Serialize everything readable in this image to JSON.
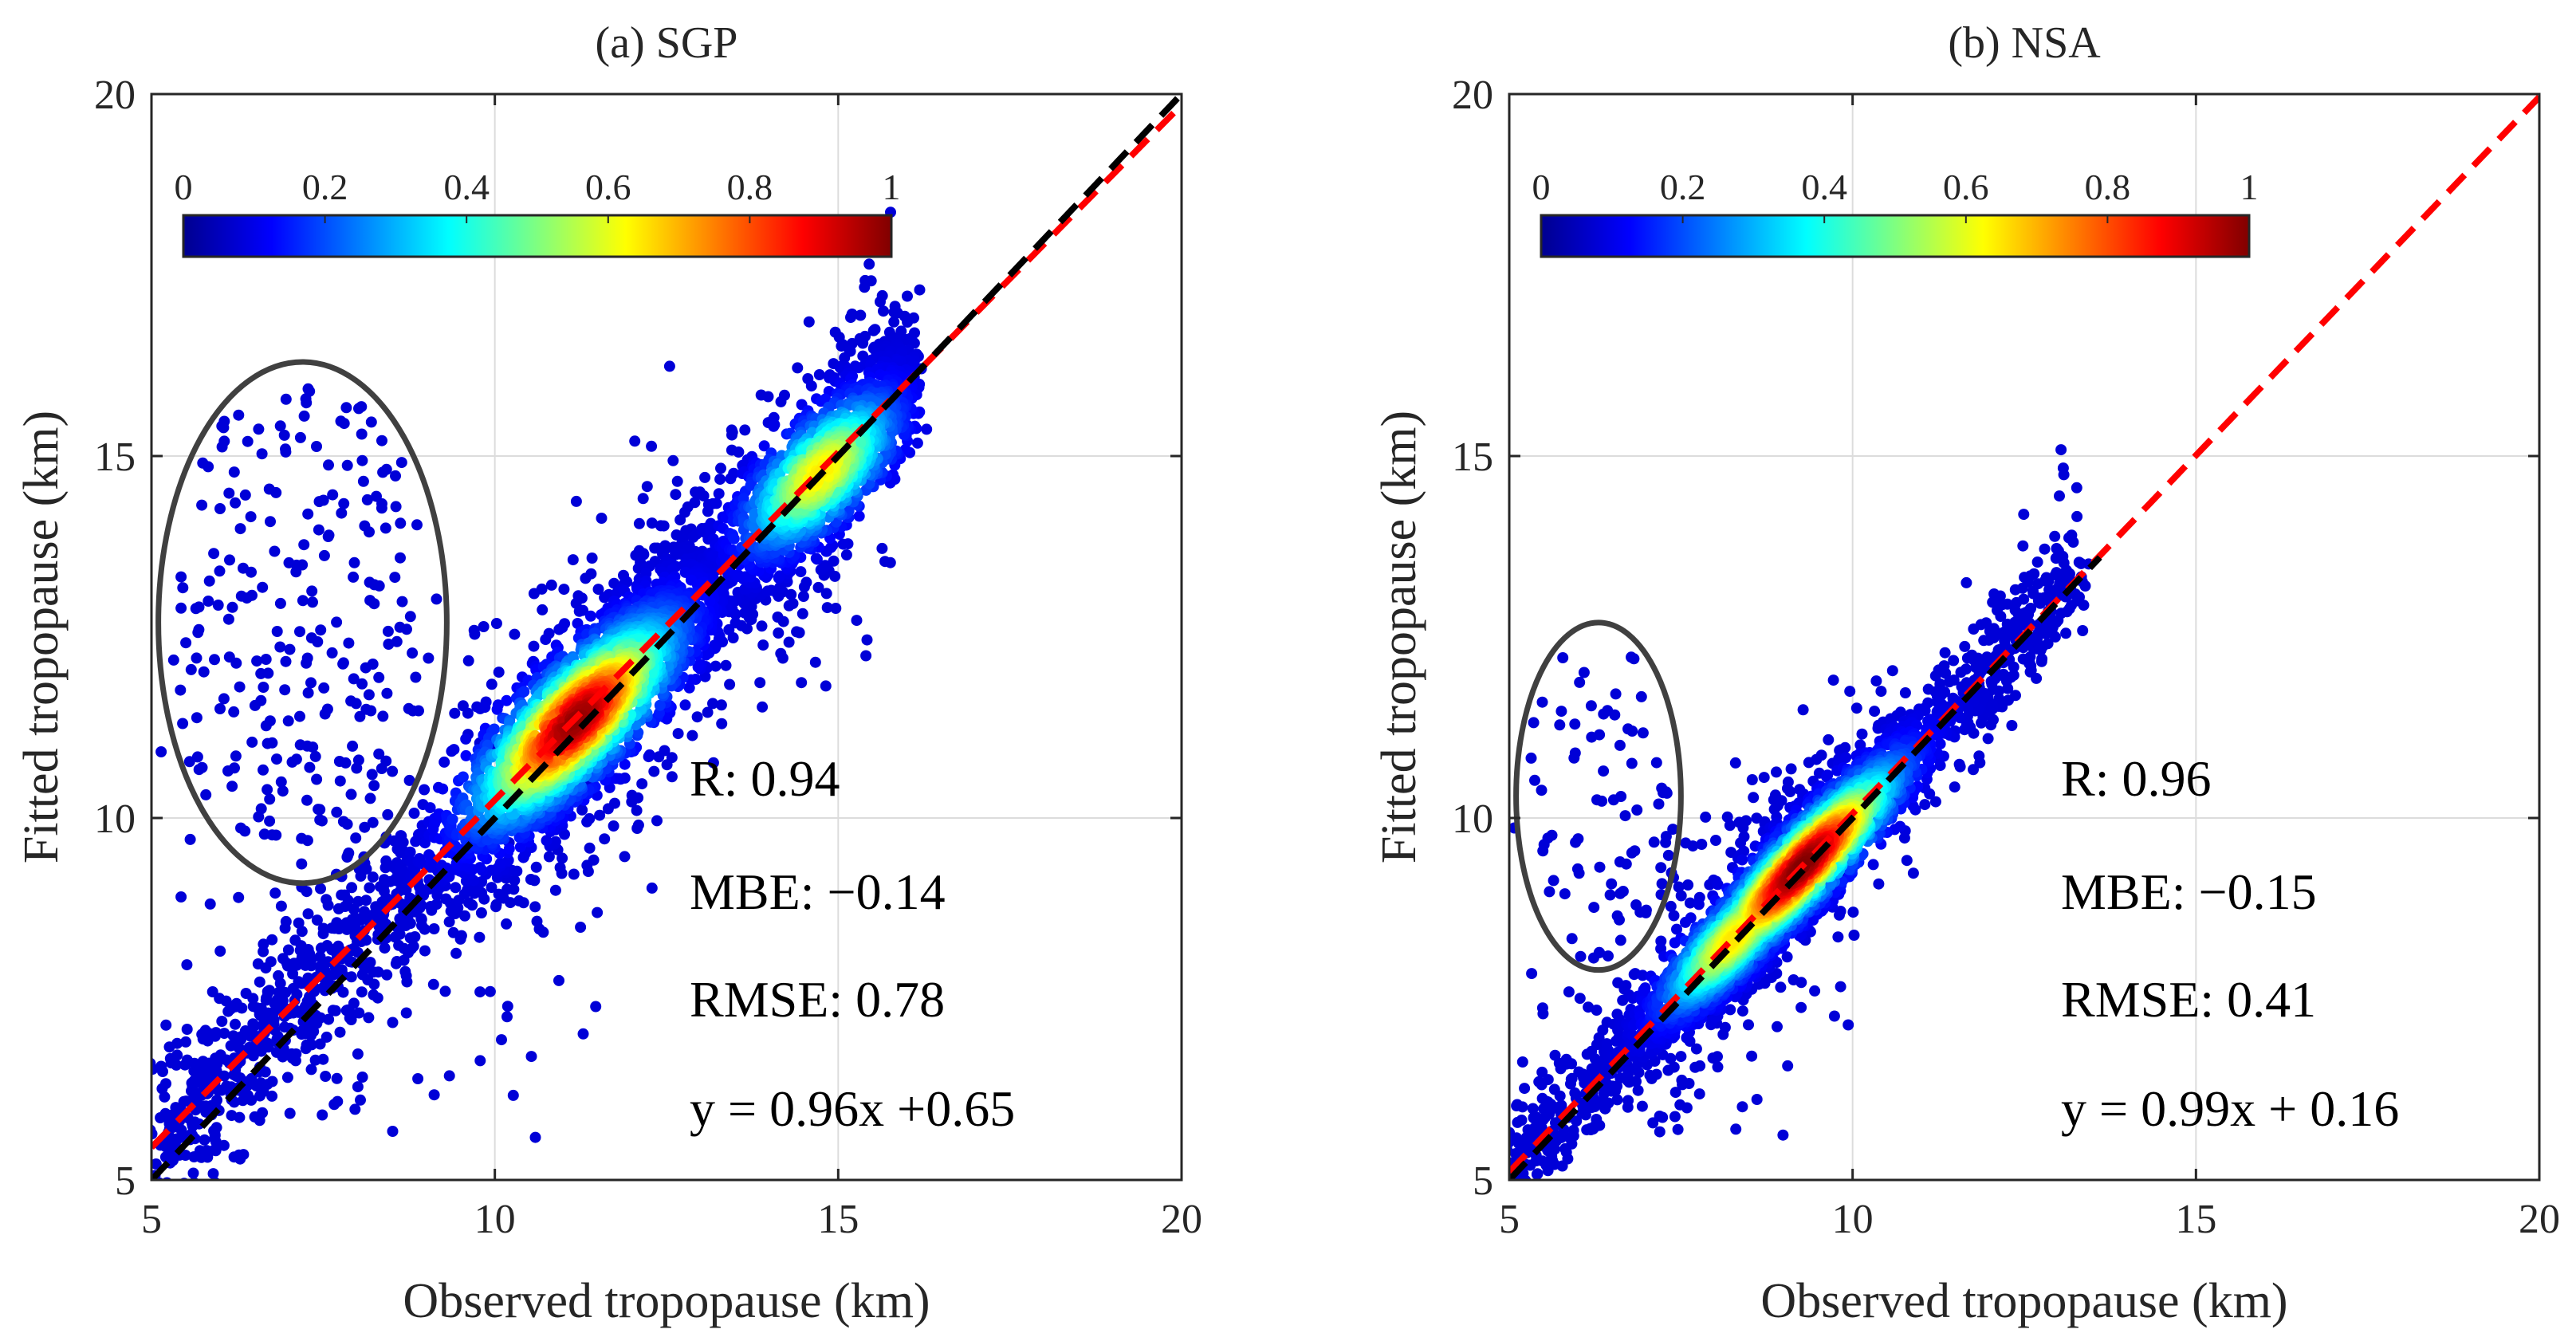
{
  "chart_data": [
    {
      "type": "scatter",
      "title": "(a)  SGP",
      "xlabel": "Observed tropopause (km)",
      "ylabel": "Fitted tropopause (km)",
      "xlim": [
        5,
        20
      ],
      "ylim": [
        5,
        20
      ],
      "xticks": [
        "5",
        "10",
        "15",
        "20"
      ],
      "yticks": [
        "5",
        "10",
        "15",
        "20"
      ],
      "grid": true,
      "colorbar": {
        "label_ticks": [
          "0",
          "0.2",
          "0.4",
          "0.6",
          "0.8",
          "1"
        ],
        "range": [
          0,
          1
        ]
      },
      "stats": [
        "R: 0.94",
        "MBE: −0.14",
        "RMSE: 0.78",
        "y = 0.96x +0.65"
      ],
      "fit_line": {
        "slope": 0.96,
        "intercept": 0.65,
        "color": "#ff0000"
      },
      "identity_line": {
        "slope": 1,
        "intercept": 0,
        "color": "#000000"
      },
      "density_cloud": {
        "x_range": [
          5,
          16
        ],
        "core_center": [
          11.3,
          11.2
        ],
        "secondary_center": [
          14.8,
          14.7
        ]
      },
      "outlier_region": {
        "center": [
          7.2,
          12.7
        ],
        "x_radius": 2.1,
        "y_radius": 3.6
      }
    },
    {
      "type": "scatter",
      "title": "(b)  NSA",
      "xlabel": "Observed tropopause (km)",
      "ylabel": "Fitted tropopause (km)",
      "xlim": [
        5,
        20
      ],
      "ylim": [
        5,
        20
      ],
      "xticks": [
        "5",
        "10",
        "15",
        "20"
      ],
      "yticks": [
        "5",
        "10",
        "15",
        "20"
      ],
      "grid": true,
      "colorbar": {
        "label_ticks": [
          "0",
          "0.2",
          "0.4",
          "0.6",
          "0.8",
          "1"
        ],
        "range": [
          0,
          1
        ]
      },
      "stats": [
        "R: 0.96",
        "MBE: −0.15",
        "RMSE: 0.41",
        "y = 0.99x + 0.16"
      ],
      "fit_line": {
        "slope": 0.99,
        "intercept": 0.16,
        "color": "#ff0000"
      },
      "identity_line": {
        "slope": 1,
        "intercept": 0,
        "color": "#000000"
      },
      "density_cloud": {
        "x_range": [
          5,
          13.3
        ],
        "core_center": [
          9.3,
          9.3
        ],
        "secondary_center": [
          8.3,
          8.3
        ]
      },
      "outlier_region": {
        "center": [
          6.3,
          10.3
        ],
        "x_radius": 1.2,
        "y_radius": 2.4
      }
    }
  ]
}
